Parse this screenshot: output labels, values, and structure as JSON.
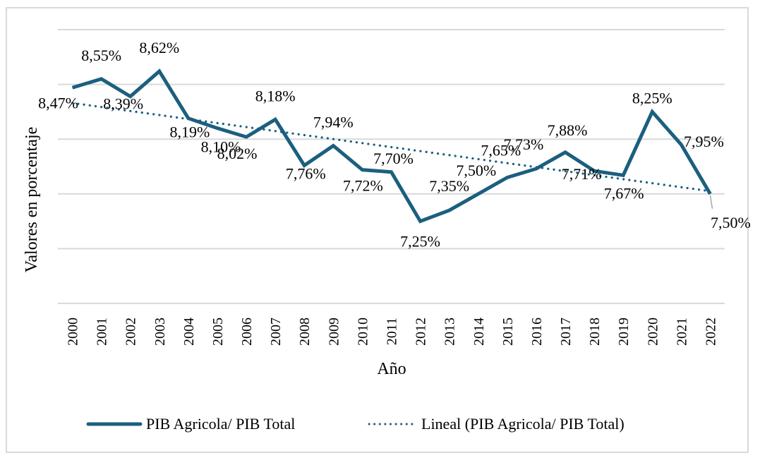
{
  "chart_data": {
    "type": "line",
    "title": "",
    "xlabel": "Año",
    "ylabel": "Valores en porcentaje",
    "ylim": [
      6.5,
      9.0
    ],
    "y_gridlines": [
      6.5,
      7.0,
      7.5,
      8.0,
      8.5,
      9.0
    ],
    "y_tick_labels_visible": false,
    "grid": true,
    "legend_position": "bottom",
    "categories": [
      "2000",
      "2001",
      "2002",
      "2003",
      "2004",
      "2005",
      "2006",
      "2007",
      "2008",
      "2009",
      "2010",
      "2011",
      "2012",
      "2013",
      "2014",
      "2015",
      "2016",
      "2017",
      "2018",
      "2019",
      "2020",
      "2021",
      "2022"
    ],
    "series": [
      {
        "name": "PIB Agricola/ PIB Total",
        "style": "solid",
        "color": "#1b5f7f",
        "values": [
          8.47,
          8.55,
          8.39,
          8.62,
          8.19,
          8.1,
          8.02,
          8.18,
          7.76,
          7.94,
          7.72,
          7.7,
          7.25,
          7.35,
          7.5,
          7.65,
          7.73,
          7.88,
          7.71,
          7.67,
          8.25,
          7.95,
          7.5
        ],
        "labels": [
          "8,47%",
          "8,55%",
          "8,39%",
          "8,62%",
          "8,19%",
          "8,10%",
          "8,02%",
          "8,18%",
          "7,76%",
          "7,94%",
          "7,72%",
          "7,70%",
          "7,25%",
          "7,35%",
          "7,50%",
          "7,65%",
          "7,73%",
          "7,88%",
          "7,71%",
          "7,67%",
          "8,25%",
          "7,95%",
          "7,50%"
        ]
      },
      {
        "name": "Lineal (PIB Agricola/ PIB Total)",
        "style": "dotted",
        "color": "#1b5f7f",
        "trend": "linear",
        "start_value": 8.33,
        "end_value": 7.53
      }
    ]
  }
}
